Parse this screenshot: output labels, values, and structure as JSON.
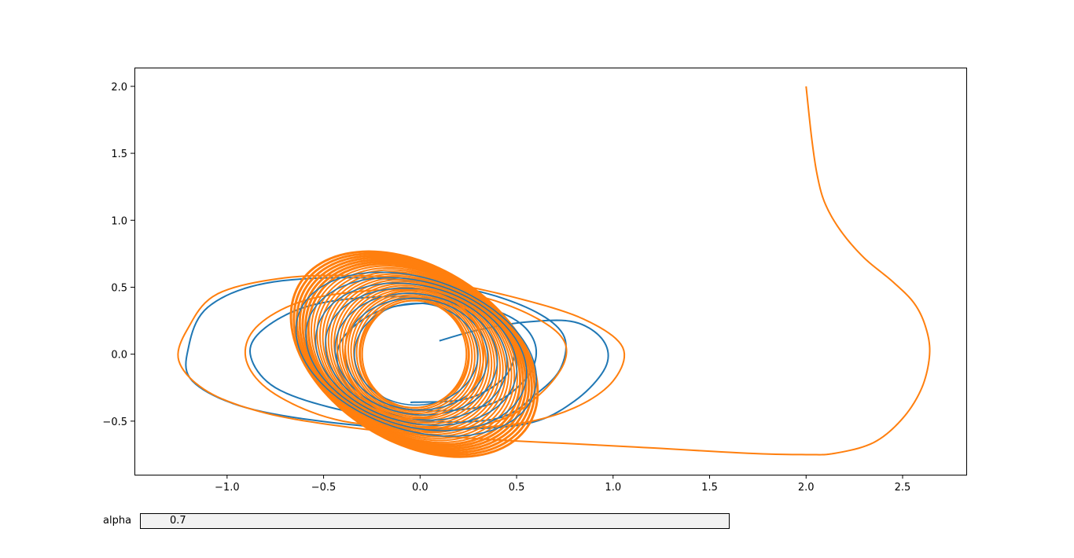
{
  "chart_data": {
    "type": "line",
    "title": "",
    "xlabel": "",
    "ylabel": "",
    "xlim": [
      -1.48,
      2.83
    ],
    "ylim": [
      -0.9,
      2.14
    ],
    "grid": false,
    "x_ticks": [
      "−1.0",
      "−0.5",
      "0.0",
      "0.5",
      "1.0",
      "1.5",
      "2.0",
      "2.5"
    ],
    "x_tick_values": [
      -1.0,
      -0.5,
      0.0,
      0.5,
      1.0,
      1.5,
      2.0,
      2.5
    ],
    "y_ticks": [
      "−0.5",
      "0.0",
      "0.5",
      "1.0",
      "1.5",
      "2.0"
    ],
    "y_tick_values": [
      -0.5,
      0.0,
      0.5,
      1.0,
      1.5,
      2.0
    ],
    "series": [
      {
        "color": "#1f77b4",
        "start": [
          0.1,
          0.1
        ],
        "description_points": [
          [
            0.1,
            0.1
          ],
          [
            0.55,
            0.25
          ],
          [
            0.95,
            0.0
          ],
          [
            0.6,
            -0.5
          ],
          [
            -0.2,
            -0.55
          ],
          [
            -1.2,
            -0.2
          ],
          [
            -1.1,
            0.5
          ],
          [
            -0.2,
            0.57
          ],
          [
            0.6,
            0.4
          ],
          [
            0.75,
            0.0
          ],
          [
            0.4,
            -0.5
          ],
          [
            -0.4,
            -0.45
          ],
          [
            -0.9,
            0.0
          ],
          [
            -0.4,
            0.42
          ],
          [
            0.3,
            0.37
          ],
          [
            0.55,
            0.0
          ],
          [
            0.2,
            -0.38
          ],
          [
            -0.3,
            -0.3
          ],
          [
            -0.4,
            0.05
          ],
          [
            -0.1,
            0.37
          ],
          [
            0.3,
            0.33
          ],
          [
            0.45,
            0.0
          ],
          [
            0.1,
            -0.36
          ],
          [
            -0.35,
            -0.2
          ]
        ]
      },
      {
        "color": "#ff7f0e",
        "start": [
          2.0,
          2.0
        ],
        "description_points": [
          [
            2.0,
            2.0
          ],
          [
            2.06,
            1.32
          ],
          [
            2.3,
            0.7
          ],
          [
            2.6,
            0.25
          ],
          [
            2.62,
            -0.2
          ],
          [
            2.4,
            -0.7
          ],
          [
            2.0,
            -0.75
          ],
          [
            1.0,
            -0.68
          ],
          [
            0.2,
            -0.62
          ],
          [
            -0.6,
            -0.5
          ],
          [
            -1.25,
            -0.05
          ],
          [
            -0.95,
            0.55
          ],
          [
            -0.2,
            0.58
          ],
          [
            0.65,
            0.35
          ],
          [
            1.08,
            0.0
          ],
          [
            0.7,
            -0.5
          ],
          [
            -0.1,
            -0.55
          ],
          [
            -0.9,
            0.0
          ],
          [
            -0.5,
            0.45
          ],
          [
            0.4,
            0.4
          ],
          [
            0.75,
            0.0
          ],
          [
            0.3,
            -0.55
          ],
          [
            -0.4,
            -0.5
          ],
          [
            -0.63,
            0.0
          ],
          [
            -0.2,
            0.75
          ],
          [
            0.6,
            0.3
          ],
          [
            0.65,
            -0.3
          ],
          [
            0.2,
            -0.75
          ],
          [
            -0.5,
            -0.3
          ]
        ],
        "limit_cycle_extent": {
          "x": [
            -0.65,
            0.65
          ],
          "y": [
            -0.76,
            0.76
          ]
        }
      }
    ]
  },
  "slider": {
    "label": "alpha",
    "value": "0.7"
  }
}
